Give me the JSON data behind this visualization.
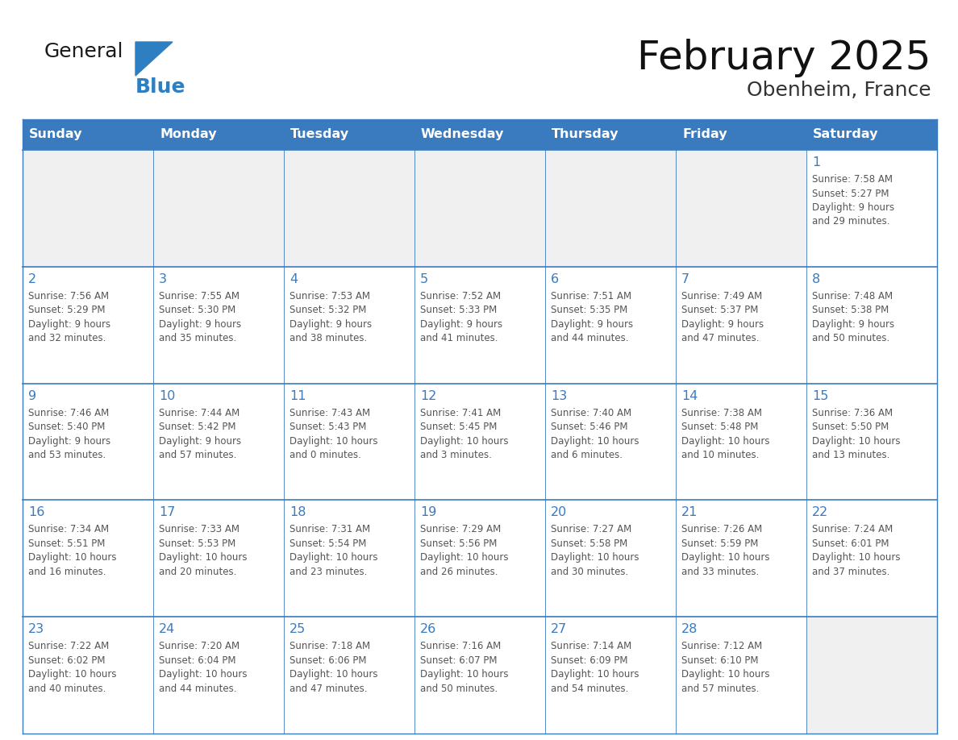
{
  "title": "February 2025",
  "subtitle": "Obenheim, France",
  "header_color": "#3a7abf",
  "header_text_color": "#ffffff",
  "cell_bg_color": "#ffffff",
  "empty_cell_bg_color": "#f0f0f0",
  "cell_border_color": "#3a7abf",
  "day_number_color": "#3a7abf",
  "cell_text_color": "#555555",
  "background_color": "#ffffff",
  "days_of_week": [
    "Sunday",
    "Monday",
    "Tuesday",
    "Wednesday",
    "Thursday",
    "Friday",
    "Saturday"
  ],
  "calendar_data": [
    [
      {
        "day": null,
        "info": ""
      },
      {
        "day": null,
        "info": ""
      },
      {
        "day": null,
        "info": ""
      },
      {
        "day": null,
        "info": ""
      },
      {
        "day": null,
        "info": ""
      },
      {
        "day": null,
        "info": ""
      },
      {
        "day": 1,
        "info": "Sunrise: 7:58 AM\nSunset: 5:27 PM\nDaylight: 9 hours\nand 29 minutes."
      }
    ],
    [
      {
        "day": 2,
        "info": "Sunrise: 7:56 AM\nSunset: 5:29 PM\nDaylight: 9 hours\nand 32 minutes."
      },
      {
        "day": 3,
        "info": "Sunrise: 7:55 AM\nSunset: 5:30 PM\nDaylight: 9 hours\nand 35 minutes."
      },
      {
        "day": 4,
        "info": "Sunrise: 7:53 AM\nSunset: 5:32 PM\nDaylight: 9 hours\nand 38 minutes."
      },
      {
        "day": 5,
        "info": "Sunrise: 7:52 AM\nSunset: 5:33 PM\nDaylight: 9 hours\nand 41 minutes."
      },
      {
        "day": 6,
        "info": "Sunrise: 7:51 AM\nSunset: 5:35 PM\nDaylight: 9 hours\nand 44 minutes."
      },
      {
        "day": 7,
        "info": "Sunrise: 7:49 AM\nSunset: 5:37 PM\nDaylight: 9 hours\nand 47 minutes."
      },
      {
        "day": 8,
        "info": "Sunrise: 7:48 AM\nSunset: 5:38 PM\nDaylight: 9 hours\nand 50 minutes."
      }
    ],
    [
      {
        "day": 9,
        "info": "Sunrise: 7:46 AM\nSunset: 5:40 PM\nDaylight: 9 hours\nand 53 minutes."
      },
      {
        "day": 10,
        "info": "Sunrise: 7:44 AM\nSunset: 5:42 PM\nDaylight: 9 hours\nand 57 minutes."
      },
      {
        "day": 11,
        "info": "Sunrise: 7:43 AM\nSunset: 5:43 PM\nDaylight: 10 hours\nand 0 minutes."
      },
      {
        "day": 12,
        "info": "Sunrise: 7:41 AM\nSunset: 5:45 PM\nDaylight: 10 hours\nand 3 minutes."
      },
      {
        "day": 13,
        "info": "Sunrise: 7:40 AM\nSunset: 5:46 PM\nDaylight: 10 hours\nand 6 minutes."
      },
      {
        "day": 14,
        "info": "Sunrise: 7:38 AM\nSunset: 5:48 PM\nDaylight: 10 hours\nand 10 minutes."
      },
      {
        "day": 15,
        "info": "Sunrise: 7:36 AM\nSunset: 5:50 PM\nDaylight: 10 hours\nand 13 minutes."
      }
    ],
    [
      {
        "day": 16,
        "info": "Sunrise: 7:34 AM\nSunset: 5:51 PM\nDaylight: 10 hours\nand 16 minutes."
      },
      {
        "day": 17,
        "info": "Sunrise: 7:33 AM\nSunset: 5:53 PM\nDaylight: 10 hours\nand 20 minutes."
      },
      {
        "day": 18,
        "info": "Sunrise: 7:31 AM\nSunset: 5:54 PM\nDaylight: 10 hours\nand 23 minutes."
      },
      {
        "day": 19,
        "info": "Sunrise: 7:29 AM\nSunset: 5:56 PM\nDaylight: 10 hours\nand 26 minutes."
      },
      {
        "day": 20,
        "info": "Sunrise: 7:27 AM\nSunset: 5:58 PM\nDaylight: 10 hours\nand 30 minutes."
      },
      {
        "day": 21,
        "info": "Sunrise: 7:26 AM\nSunset: 5:59 PM\nDaylight: 10 hours\nand 33 minutes."
      },
      {
        "day": 22,
        "info": "Sunrise: 7:24 AM\nSunset: 6:01 PM\nDaylight: 10 hours\nand 37 minutes."
      }
    ],
    [
      {
        "day": 23,
        "info": "Sunrise: 7:22 AM\nSunset: 6:02 PM\nDaylight: 10 hours\nand 40 minutes."
      },
      {
        "day": 24,
        "info": "Sunrise: 7:20 AM\nSunset: 6:04 PM\nDaylight: 10 hours\nand 44 minutes."
      },
      {
        "day": 25,
        "info": "Sunrise: 7:18 AM\nSunset: 6:06 PM\nDaylight: 10 hours\nand 47 minutes."
      },
      {
        "day": 26,
        "info": "Sunrise: 7:16 AM\nSunset: 6:07 PM\nDaylight: 10 hours\nand 50 minutes."
      },
      {
        "day": 27,
        "info": "Sunrise: 7:14 AM\nSunset: 6:09 PM\nDaylight: 10 hours\nand 54 minutes."
      },
      {
        "day": 28,
        "info": "Sunrise: 7:12 AM\nSunset: 6:10 PM\nDaylight: 10 hours\nand 57 minutes."
      },
      {
        "day": null,
        "info": ""
      }
    ]
  ],
  "logo_color_general": "#1a1a1a",
  "logo_color_blue": "#2e7fc2",
  "logo_triangle_color": "#2e7fc2"
}
